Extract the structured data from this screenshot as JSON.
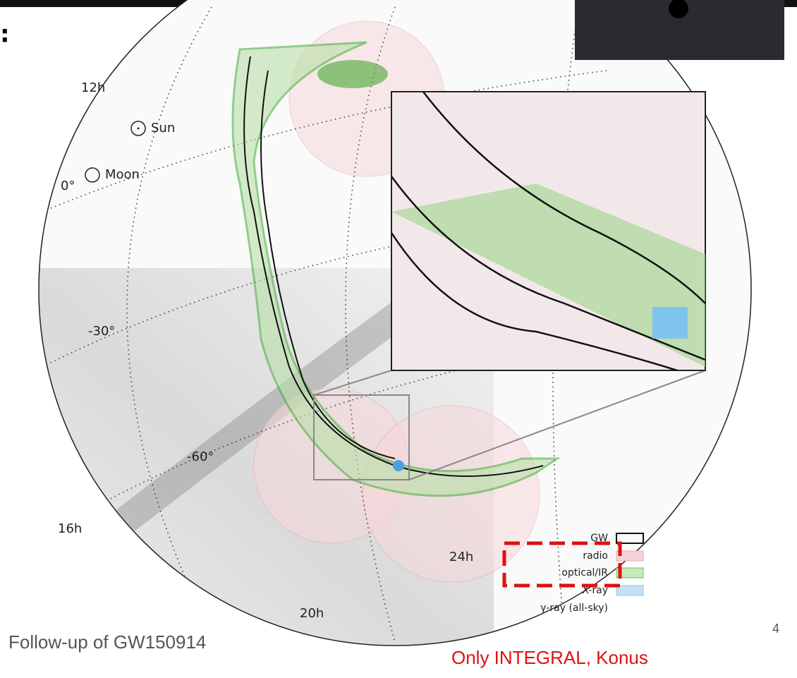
{
  "title_fragment": ":",
  "figure": {
    "ra_labels": [
      "12h",
      "16h",
      "20h",
      "24h"
    ],
    "dec_labels": [
      "0°",
      "-30°",
      "-60°"
    ],
    "markers": [
      "Sun",
      "Moon"
    ],
    "legend": [
      "GW",
      "radio",
      "optical/IR",
      "X-ray",
      "γ-ray (all-sky)"
    ]
  },
  "caption": "Follow-up of GW150914",
  "annotation": "Only INTEGRAL, Konus",
  "page_number": "4"
}
